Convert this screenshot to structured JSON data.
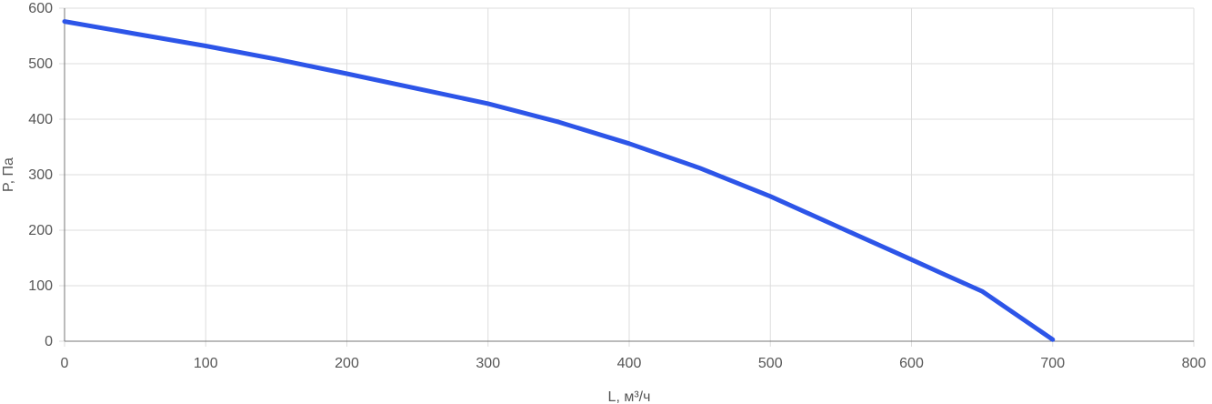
{
  "chart_data": {
    "type": "line",
    "title": "",
    "xlabel": "L, м³/ч",
    "ylabel": "P, Па",
    "xlim": [
      0,
      800
    ],
    "ylim": [
      0,
      600
    ],
    "xticks": [
      0,
      100,
      200,
      300,
      400,
      500,
      600,
      700,
      800
    ],
    "yticks": [
      0,
      100,
      200,
      300,
      400,
      500,
      600
    ],
    "grid": true,
    "legend": "none",
    "series": [
      {
        "color": "#2d55e8",
        "x": [
          0,
          50,
          100,
          150,
          200,
          250,
          300,
          350,
          400,
          450,
          500,
          550,
          600,
          620,
          650,
          700
        ],
        "y": [
          576,
          554,
          532,
          508,
          482,
          455,
          428,
          395,
          356,
          312,
          261,
          204,
          147,
          124,
          90,
          3
        ]
      }
    ]
  }
}
